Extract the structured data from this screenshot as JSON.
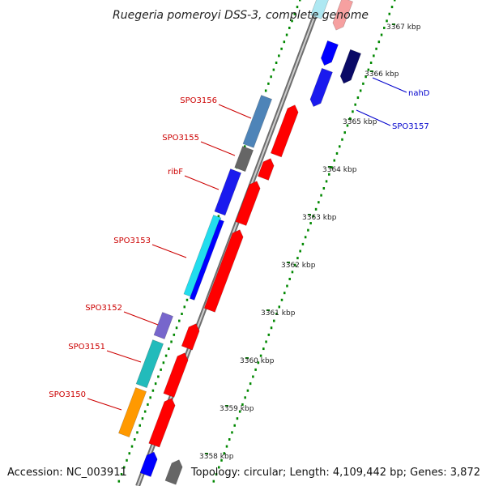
{
  "title": "Ruegeria pomeroyi DSS-3, complete genome",
  "footer": {
    "accession": "Accession: NC_003911",
    "topology": "Topology: circular; Length: 4,109,442 bp; Genes: 3,872"
  },
  "kbp_ticks": [
    "3358 kbp",
    "3359 kbp",
    "3360 kbp",
    "3361 kbp",
    "3362 kbp",
    "3363 kbp",
    "3364 kbp",
    "3365 kbp",
    "3366 kbp",
    "3367 kbp"
  ],
  "genes_left": [
    {
      "label": "SPO3156",
      "color": "#4e84b8"
    },
    {
      "label": "SPO3155",
      "color": "#666666"
    },
    {
      "label": "ribF",
      "color": "#1a1aee"
    },
    {
      "label": "SPO3153",
      "color": "#22ddee"
    },
    {
      "label": "SPO3152",
      "color": "#7766cc"
    },
    {
      "label": "SPO3151",
      "color": "#22bbbb"
    },
    {
      "label": "SPO3150",
      "color": "#ff9900"
    }
  ],
  "genes_right": [
    {
      "label": "nahD",
      "color": "#0a0a66"
    },
    {
      "label": "SPO3157",
      "color": "#1a1aee"
    }
  ],
  "colors": {
    "left_label": "#cc0000",
    "right_label": "#0000cc",
    "forward_strand": "#ff0000",
    "reverse_strand": "#0000ff",
    "backbone": "#888888",
    "gc_dots": "#008800"
  }
}
